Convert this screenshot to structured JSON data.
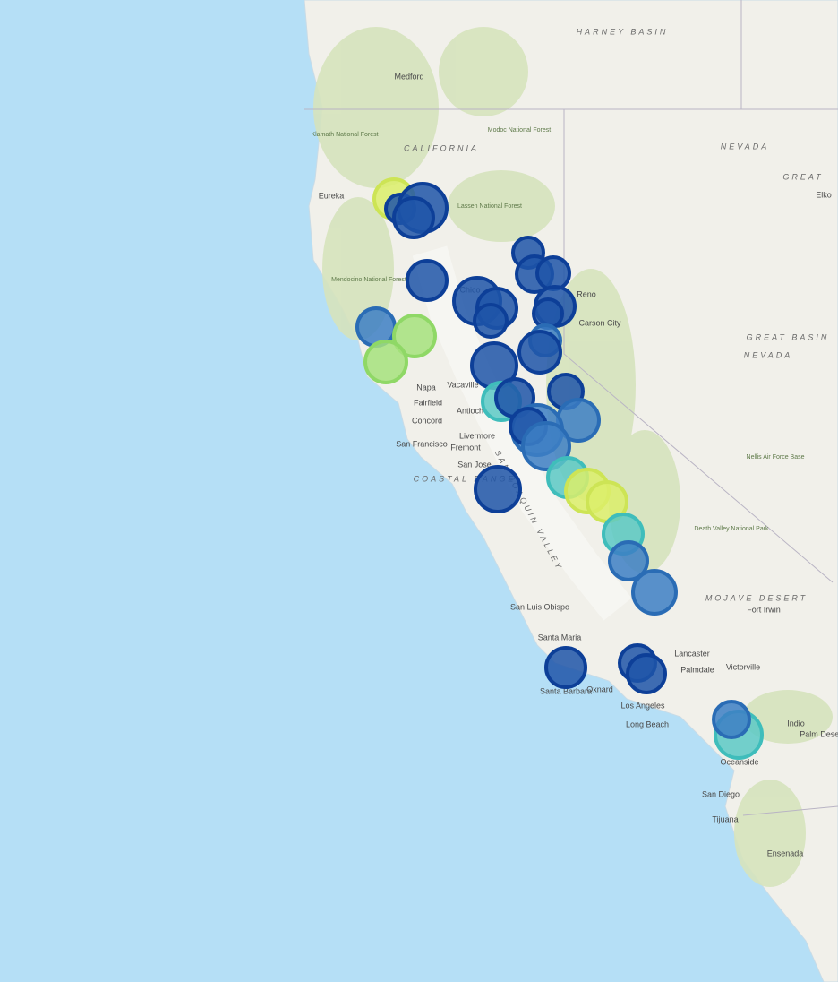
{
  "labels": [
    "HARNEY BASIN",
    "Medford",
    "CALIFORNIA",
    "NEVADA",
    "GREAT",
    "Elko",
    "Eureka",
    "Reno",
    "Carson City",
    "GREAT BASIN",
    "NEVADA",
    "Chico",
    "Vacaville",
    "Napa",
    "Fairfield",
    "Antioch",
    "Concord",
    "Livermore",
    "San Francisco",
    "Fremont",
    "San Jose",
    "COASTAL RANGE",
    "SAN JOAQUIN VALLEY",
    "Nellis Air Force Base",
    "Death Valley National Park",
    "MOJAVE DESERT",
    "Fort Irwin",
    "San Luis Obispo",
    "Santa Maria",
    "Lancaster",
    "Palmdale",
    "Victorville",
    "Santa Barbara",
    "Oxnard",
    "Los Angeles",
    "Long Beach",
    "Indio",
    "Palm Desert",
    "Oceanside",
    "San Diego",
    "Tijuana",
    "Ensenada",
    "Klamath National Forest",
    "Modoc National Forest",
    "Lassen National Forest",
    "Mendocino National Forest"
  ]
}
